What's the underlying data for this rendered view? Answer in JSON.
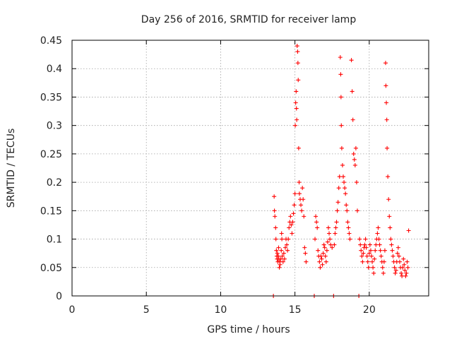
{
  "chart_data": {
    "type": "scatter",
    "title": "Day 256 of 2016, SRMTID for receiver lamp",
    "xlabel": "GPS time / hours",
    "ylabel": "SRMTID / TECUs",
    "xlim": [
      0,
      24
    ],
    "ylim": [
      0,
      0.45
    ],
    "xticks": [
      "0",
      "5",
      "10",
      "15",
      "20"
    ],
    "yticks": [
      "0",
      "0.05",
      "0.1",
      "0.15",
      "0.2",
      "0.25",
      "0.3",
      "0.35",
      "0.4",
      "0.45"
    ],
    "grid": true,
    "marker": "plus",
    "series": [
      {
        "name": "SRMTID",
        "color": "#ff0000",
        "points": [
          [
            13.55,
            0.0
          ],
          [
            13.6,
            0.175
          ],
          [
            13.62,
            0.15
          ],
          [
            13.65,
            0.14
          ],
          [
            13.7,
            0.12
          ],
          [
            13.72,
            0.1
          ],
          [
            13.75,
            0.08
          ],
          [
            13.78,
            0.07
          ],
          [
            13.8,
            0.065
          ],
          [
            13.82,
            0.075
          ],
          [
            13.85,
            0.06
          ],
          [
            13.88,
            0.07
          ],
          [
            13.9,
            0.085
          ],
          [
            13.92,
            0.065
          ],
          [
            13.95,
            0.05
          ],
          [
            13.98,
            0.06
          ],
          [
            14.0,
            0.055
          ],
          [
            14.05,
            0.065
          ],
          [
            14.08,
            0.08
          ],
          [
            14.1,
            0.11
          ],
          [
            14.12,
            0.1
          ],
          [
            14.15,
            0.07
          ],
          [
            14.2,
            0.06
          ],
          [
            14.25,
            0.075
          ],
          [
            14.3,
            0.065
          ],
          [
            14.35,
            0.085
          ],
          [
            14.4,
            0.1
          ],
          [
            14.45,
            0.09
          ],
          [
            14.5,
            0.08
          ],
          [
            14.55,
            0.1
          ],
          [
            14.6,
            0.12
          ],
          [
            14.65,
            0.13
          ],
          [
            14.7,
            0.14
          ],
          [
            14.75,
            0.125
          ],
          [
            14.8,
            0.11
          ],
          [
            14.85,
            0.13
          ],
          [
            14.9,
            0.145
          ],
          [
            14.95,
            0.16
          ],
          [
            15.0,
            0.18
          ],
          [
            15.02,
            0.3
          ],
          [
            15.05,
            0.34
          ],
          [
            15.08,
            0.36
          ],
          [
            15.1,
            0.33
          ],
          [
            15.12,
            0.31
          ],
          [
            15.15,
            0.44
          ],
          [
            15.18,
            0.43
          ],
          [
            15.2,
            0.41
          ],
          [
            15.22,
            0.38
          ],
          [
            15.25,
            0.26
          ],
          [
            15.28,
            0.2
          ],
          [
            15.3,
            0.18
          ],
          [
            15.35,
            0.17
          ],
          [
            15.4,
            0.16
          ],
          [
            15.45,
            0.15
          ],
          [
            15.5,
            0.19
          ],
          [
            15.55,
            0.17
          ],
          [
            15.6,
            0.14
          ],
          [
            15.65,
            0.085
          ],
          [
            15.7,
            0.075
          ],
          [
            15.75,
            0.06
          ],
          [
            16.3,
            0.0
          ],
          [
            16.35,
            0.1
          ],
          [
            16.4,
            0.14
          ],
          [
            16.45,
            0.13
          ],
          [
            16.5,
            0.12
          ],
          [
            16.55,
            0.08
          ],
          [
            16.6,
            0.07
          ],
          [
            16.65,
            0.06
          ],
          [
            16.7,
            0.05
          ],
          [
            16.75,
            0.07
          ],
          [
            16.8,
            0.065
          ],
          [
            16.85,
            0.055
          ],
          [
            16.9,
            0.075
          ],
          [
            16.95,
            0.09
          ],
          [
            17.0,
            0.085
          ],
          [
            17.05,
            0.07
          ],
          [
            17.1,
            0.06
          ],
          [
            17.15,
            0.08
          ],
          [
            17.2,
            0.095
          ],
          [
            17.25,
            0.12
          ],
          [
            17.3,
            0.11
          ],
          [
            17.35,
            0.1
          ],
          [
            17.4,
            0.09
          ],
          [
            17.5,
            0.085
          ],
          [
            17.6,
            0.0
          ],
          [
            17.65,
            0.09
          ],
          [
            17.7,
            0.11
          ],
          [
            17.75,
            0.12
          ],
          [
            17.8,
            0.13
          ],
          [
            17.85,
            0.15
          ],
          [
            17.9,
            0.165
          ],
          [
            17.95,
            0.19
          ],
          [
            18.0,
            0.21
          ],
          [
            18.05,
            0.42
          ],
          [
            18.08,
            0.39
          ],
          [
            18.1,
            0.35
          ],
          [
            18.12,
            0.3
          ],
          [
            18.15,
            0.26
          ],
          [
            18.2,
            0.23
          ],
          [
            18.25,
            0.21
          ],
          [
            18.3,
            0.2
          ],
          [
            18.35,
            0.19
          ],
          [
            18.4,
            0.18
          ],
          [
            18.45,
            0.16
          ],
          [
            18.5,
            0.15
          ],
          [
            18.55,
            0.13
          ],
          [
            18.6,
            0.12
          ],
          [
            18.65,
            0.11
          ],
          [
            18.7,
            0.1
          ],
          [
            18.8,
            0.415
          ],
          [
            18.85,
            0.36
          ],
          [
            18.9,
            0.31
          ],
          [
            18.95,
            0.25
          ],
          [
            19.0,
            0.24
          ],
          [
            19.05,
            0.23
          ],
          [
            19.1,
            0.26
          ],
          [
            19.15,
            0.2
          ],
          [
            19.2,
            0.15
          ],
          [
            19.3,
            0.0
          ],
          [
            19.35,
            0.1
          ],
          [
            19.4,
            0.09
          ],
          [
            19.45,
            0.08
          ],
          [
            19.5,
            0.07
          ],
          [
            19.55,
            0.06
          ],
          [
            19.6,
            0.075
          ],
          [
            19.65,
            0.085
          ],
          [
            19.7,
            0.09
          ],
          [
            19.75,
            0.1
          ],
          [
            19.8,
            0.085
          ],
          [
            19.85,
            0.07
          ],
          [
            19.9,
            0.06
          ],
          [
            19.95,
            0.05
          ],
          [
            20.0,
            0.075
          ],
          [
            20.05,
            0.09
          ],
          [
            20.1,
            0.08
          ],
          [
            20.15,
            0.07
          ],
          [
            20.2,
            0.06
          ],
          [
            20.25,
            0.05
          ],
          [
            20.3,
            0.04
          ],
          [
            20.35,
            0.065
          ],
          [
            20.4,
            0.08
          ],
          [
            20.45,
            0.09
          ],
          [
            20.5,
            0.1
          ],
          [
            20.55,
            0.11
          ],
          [
            20.6,
            0.12
          ],
          [
            20.65,
            0.1
          ],
          [
            20.7,
            0.09
          ],
          [
            20.75,
            0.08
          ],
          [
            20.8,
            0.07
          ],
          [
            20.85,
            0.06
          ],
          [
            20.9,
            0.05
          ],
          [
            20.95,
            0.04
          ],
          [
            21.0,
            0.06
          ],
          [
            21.05,
            0.08
          ],
          [
            21.1,
            0.41
          ],
          [
            21.12,
            0.37
          ],
          [
            21.15,
            0.34
          ],
          [
            21.18,
            0.31
          ],
          [
            21.2,
            0.26
          ],
          [
            21.25,
            0.21
          ],
          [
            21.3,
            0.17
          ],
          [
            21.35,
            0.14
          ],
          [
            21.4,
            0.12
          ],
          [
            21.45,
            0.1
          ],
          [
            21.5,
            0.09
          ],
          [
            21.55,
            0.08
          ],
          [
            21.6,
            0.07
          ],
          [
            21.65,
            0.06
          ],
          [
            21.7,
            0.05
          ],
          [
            21.75,
            0.04
          ],
          [
            21.8,
            0.045
          ],
          [
            21.85,
            0.06
          ],
          [
            21.9,
            0.075
          ],
          [
            21.95,
            0.085
          ],
          [
            22.0,
            0.07
          ],
          [
            22.05,
            0.06
          ],
          [
            22.1,
            0.05
          ],
          [
            22.15,
            0.04
          ],
          [
            22.2,
            0.035
          ],
          [
            22.25,
            0.05
          ],
          [
            22.3,
            0.065
          ],
          [
            22.35,
            0.055
          ],
          [
            22.4,
            0.045
          ],
          [
            22.45,
            0.035
          ],
          [
            22.5,
            0.04
          ],
          [
            22.55,
            0.06
          ],
          [
            22.6,
            0.05
          ],
          [
            22.65,
            0.115
          ]
        ]
      }
    ]
  }
}
